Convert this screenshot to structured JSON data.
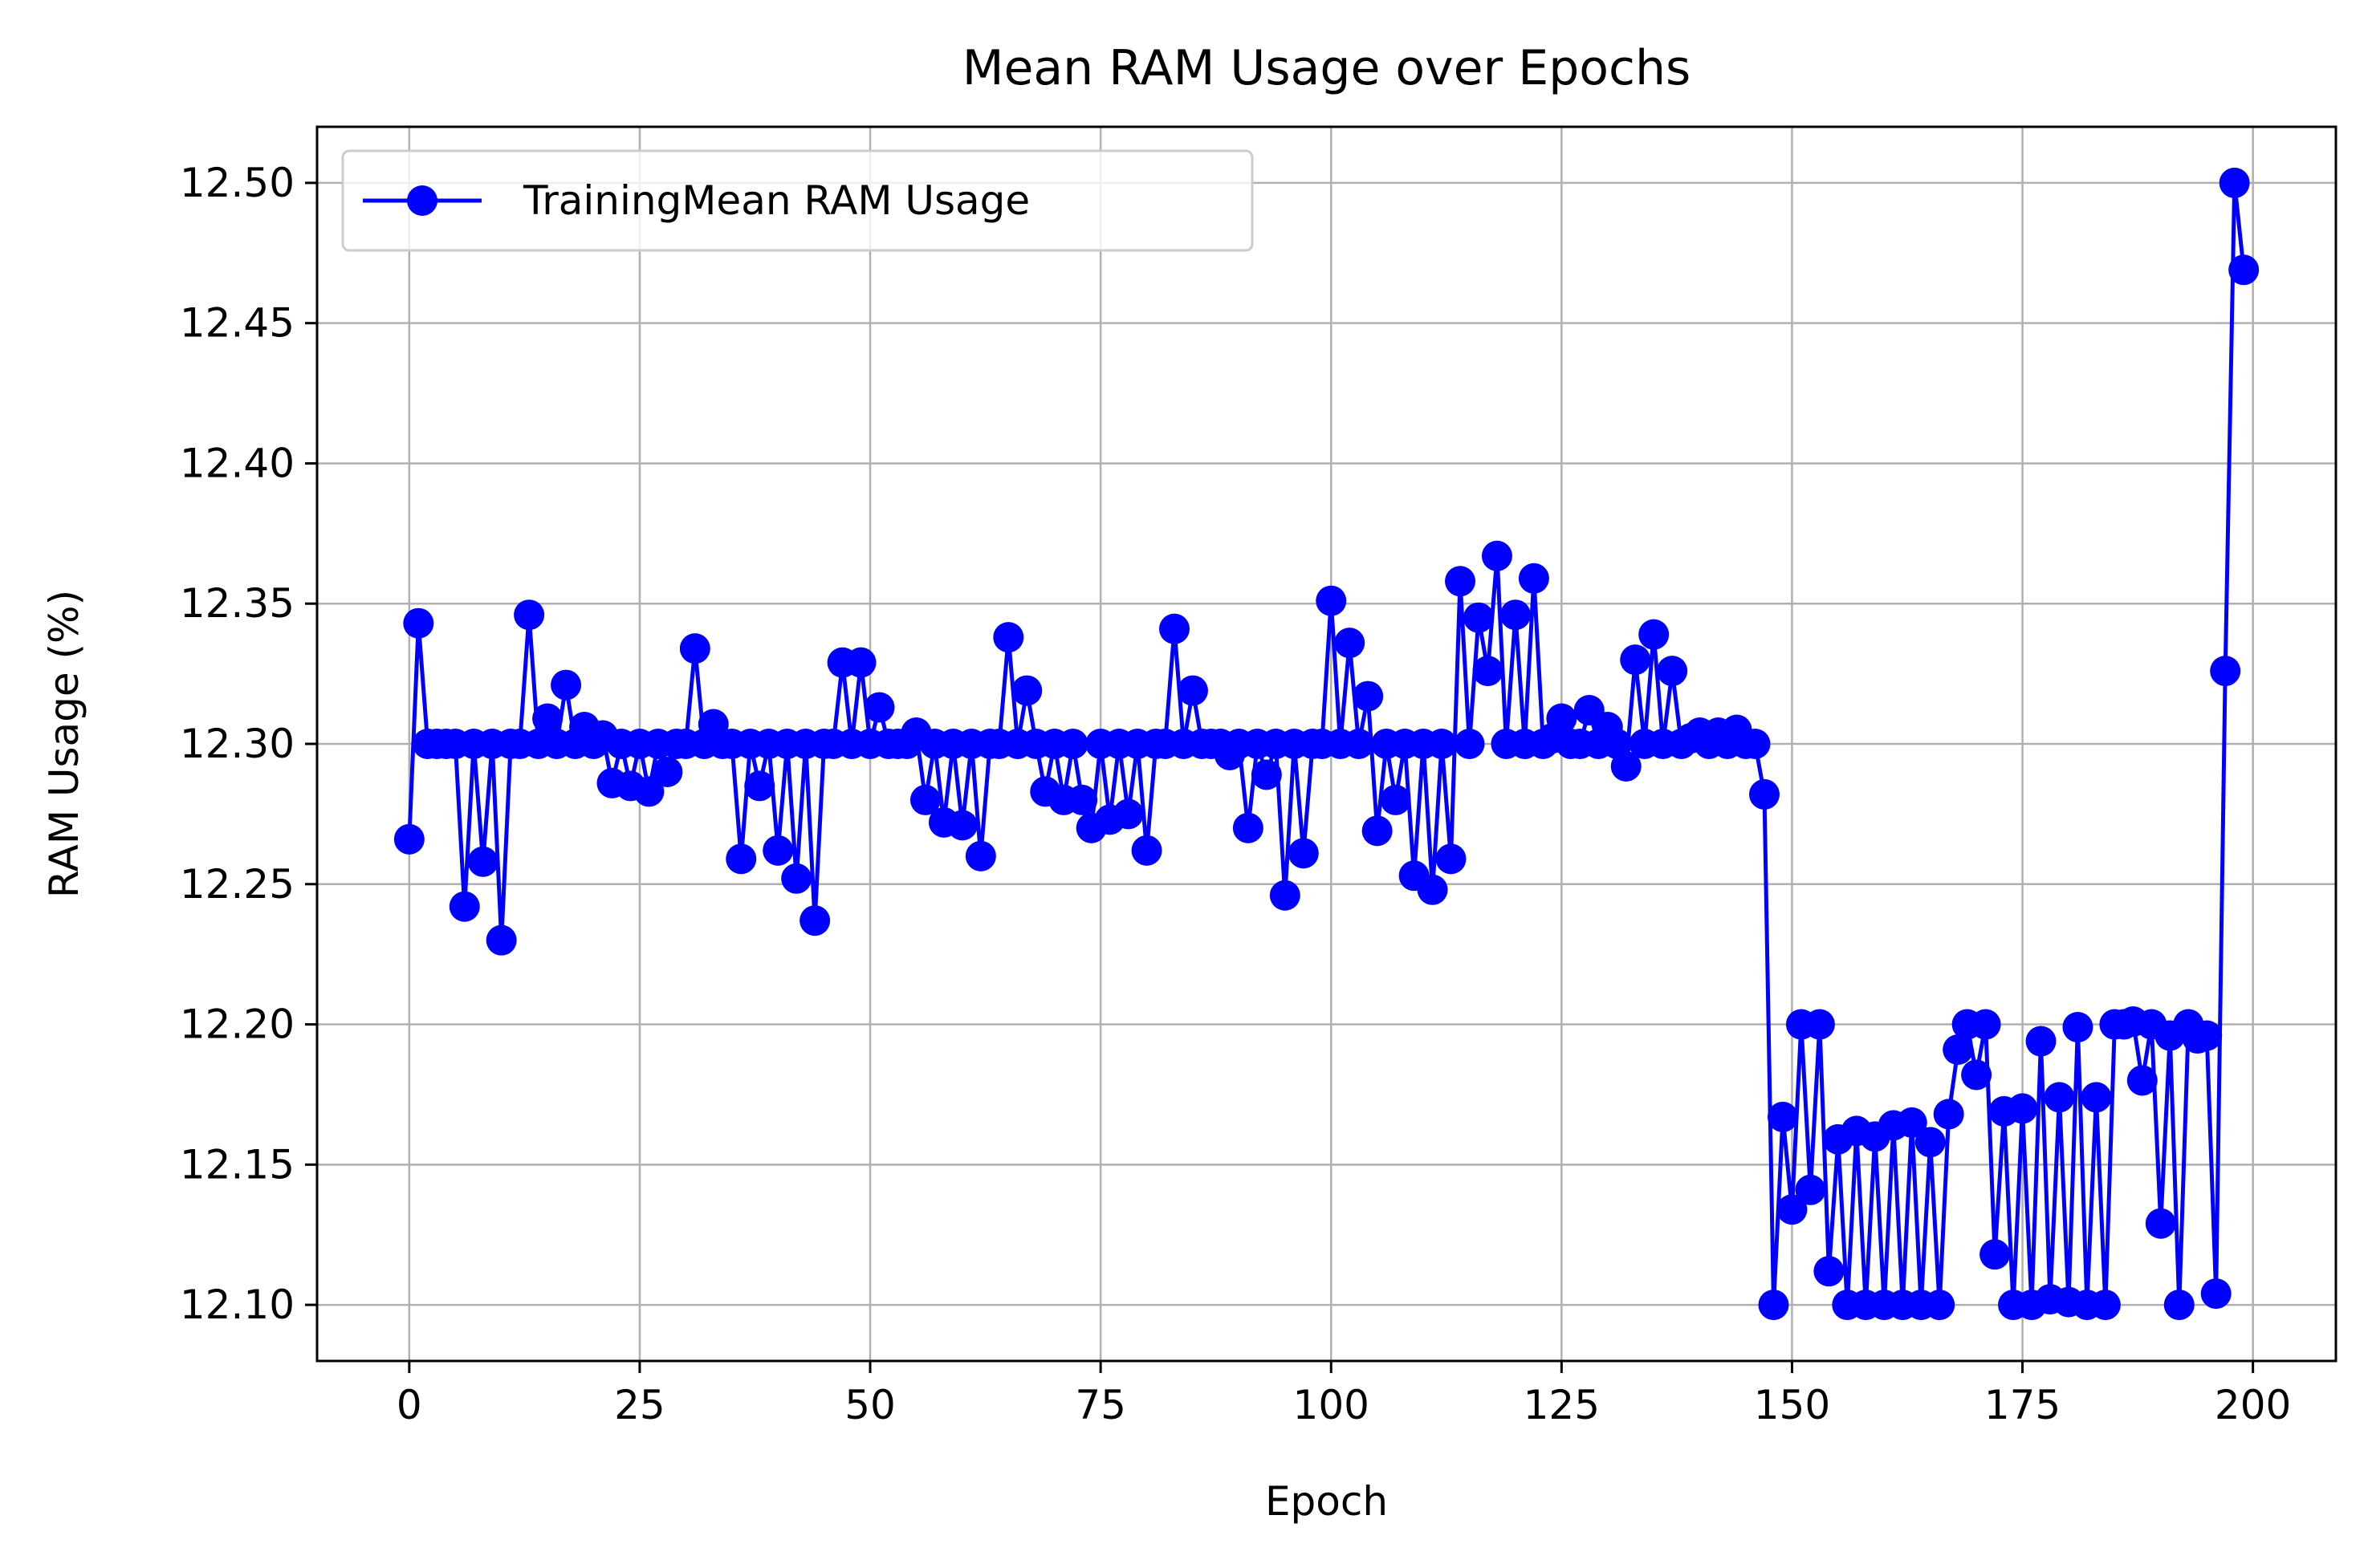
{
  "chart_data": {
    "type": "line",
    "title": "Mean RAM Usage over Epochs",
    "xlabel": "Epoch",
    "ylabel": "RAM Usage (%)",
    "xlim": [
      -10,
      209
    ],
    "ylim": [
      12.08,
      12.52
    ],
    "xticks": [
      0,
      25,
      50,
      75,
      100,
      125,
      150,
      175,
      200
    ],
    "yticks": [
      12.1,
      12.15,
      12.2,
      12.25,
      12.3,
      12.35,
      12.4,
      12.45,
      12.5
    ],
    "xtick_labels": [
      "0",
      "25",
      "50",
      "75",
      "100",
      "125",
      "150",
      "175",
      "200"
    ],
    "ytick_labels": [
      "12.10",
      "12.15",
      "12.20",
      "12.25",
      "12.30",
      "12.35",
      "12.40",
      "12.45",
      "12.50"
    ],
    "grid": true,
    "legend_position": "top-left",
    "series": [
      {
        "name": "TrainingMean RAM Usage",
        "color": "#0000ff",
        "marker": "circle",
        "x": [
          0,
          1,
          2,
          3,
          4,
          5,
          6,
          7,
          8,
          9,
          10,
          11,
          12,
          13,
          14,
          15,
          16,
          17,
          18,
          19,
          20,
          21,
          22,
          23,
          24,
          25,
          26,
          27,
          28,
          29,
          30,
          31,
          32,
          33,
          34,
          35,
          36,
          37,
          38,
          39,
          40,
          41,
          42,
          43,
          44,
          45,
          46,
          47,
          48,
          49,
          50,
          51,
          52,
          53,
          54,
          55,
          56,
          57,
          58,
          59,
          60,
          61,
          62,
          63,
          64,
          65,
          66,
          67,
          68,
          69,
          70,
          71,
          72,
          73,
          74,
          75,
          76,
          77,
          78,
          79,
          80,
          81,
          82,
          83,
          84,
          85,
          86,
          87,
          88,
          89,
          90,
          91,
          92,
          93,
          94,
          95,
          96,
          97,
          98,
          99,
          100,
          101,
          102,
          103,
          104,
          105,
          106,
          107,
          108,
          109,
          110,
          111,
          112,
          113,
          114,
          115,
          116,
          117,
          118,
          119,
          120,
          121,
          122,
          123,
          124,
          125,
          126,
          127,
          128,
          129,
          130,
          131,
          132,
          133,
          134,
          135,
          136,
          137,
          138,
          139,
          140,
          141,
          142,
          143,
          144,
          145,
          146,
          147,
          148,
          149,
          150,
          151,
          152,
          153,
          154,
          155,
          156,
          157,
          158,
          159,
          160,
          161,
          162,
          163,
          164,
          165,
          166,
          167,
          168,
          169,
          170,
          171,
          172,
          173,
          174,
          175,
          176,
          177,
          178,
          179,
          180,
          181,
          182,
          183,
          184,
          185,
          186,
          187,
          188,
          189,
          190,
          191,
          192,
          193,
          194,
          195,
          196,
          197,
          198,
          199
        ],
        "y": [
          12.266,
          12.343,
          12.3,
          12.3,
          12.3,
          12.3,
          12.242,
          12.3,
          12.258,
          12.3,
          12.23,
          12.3,
          12.3,
          12.346,
          12.3,
          12.309,
          12.3,
          12.321,
          12.3,
          12.306,
          12.3,
          12.303,
          12.286,
          12.3,
          12.285,
          12.3,
          12.283,
          12.3,
          12.29,
          12.3,
          12.3,
          12.334,
          12.3,
          12.307,
          12.3,
          12.3,
          12.259,
          12.3,
          12.285,
          12.3,
          12.262,
          12.3,
          12.252,
          12.3,
          12.237,
          12.3,
          12.3,
          12.329,
          12.3,
          12.329,
          12.3,
          12.313,
          12.3,
          12.3,
          12.3,
          12.304,
          12.28,
          12.3,
          12.272,
          12.3,
          12.271,
          12.3,
          12.26,
          12.3,
          12.3,
          12.338,
          12.3,
          12.319,
          12.3,
          12.283,
          12.3,
          12.28,
          12.3,
          12.28,
          12.27,
          12.3,
          12.273,
          12.3,
          12.275,
          12.3,
          12.262,
          12.3,
          12.3,
          12.341,
          12.3,
          12.319,
          12.3,
          12.3,
          12.3,
          12.296,
          12.3,
          12.27,
          12.3,
          12.289,
          12.3,
          12.246,
          12.3,
          12.261,
          12.3,
          12.3,
          12.351,
          12.3,
          12.336,
          12.3,
          12.317,
          12.269,
          12.3,
          12.28,
          12.3,
          12.253,
          12.3,
          12.248,
          12.3,
          12.259,
          12.358,
          12.3,
          12.345,
          12.326,
          12.367,
          12.3,
          12.346,
          12.3,
          12.359,
          12.3,
          12.302,
          12.309,
          12.3,
          12.3,
          12.312,
          12.3,
          12.306,
          12.3,
          12.292,
          12.33,
          12.3,
          12.339,
          12.3,
          12.326,
          12.3,
          12.302,
          12.304,
          12.3,
          12.304,
          12.3,
          12.305,
          12.3,
          12.3,
          12.282,
          12.1,
          12.167,
          12.134,
          12.2,
          12.141,
          12.2,
          12.112,
          12.159,
          12.1,
          12.162,
          12.1,
          12.16,
          12.1,
          12.164,
          12.1,
          12.165,
          12.1,
          12.158,
          12.1,
          12.168,
          12.191,
          12.2,
          12.182,
          12.2,
          12.118,
          12.169,
          12.1,
          12.17,
          12.1,
          12.194,
          12.102,
          12.174,
          12.101,
          12.199,
          12.1,
          12.174,
          12.1,
          12.2,
          12.2,
          12.201,
          12.18,
          12.2,
          12.129,
          12.196,
          12.1,
          12.2,
          12.195,
          12.196,
          12.104,
          12.326,
          12.5,
          12.469
        ]
      }
    ]
  }
}
